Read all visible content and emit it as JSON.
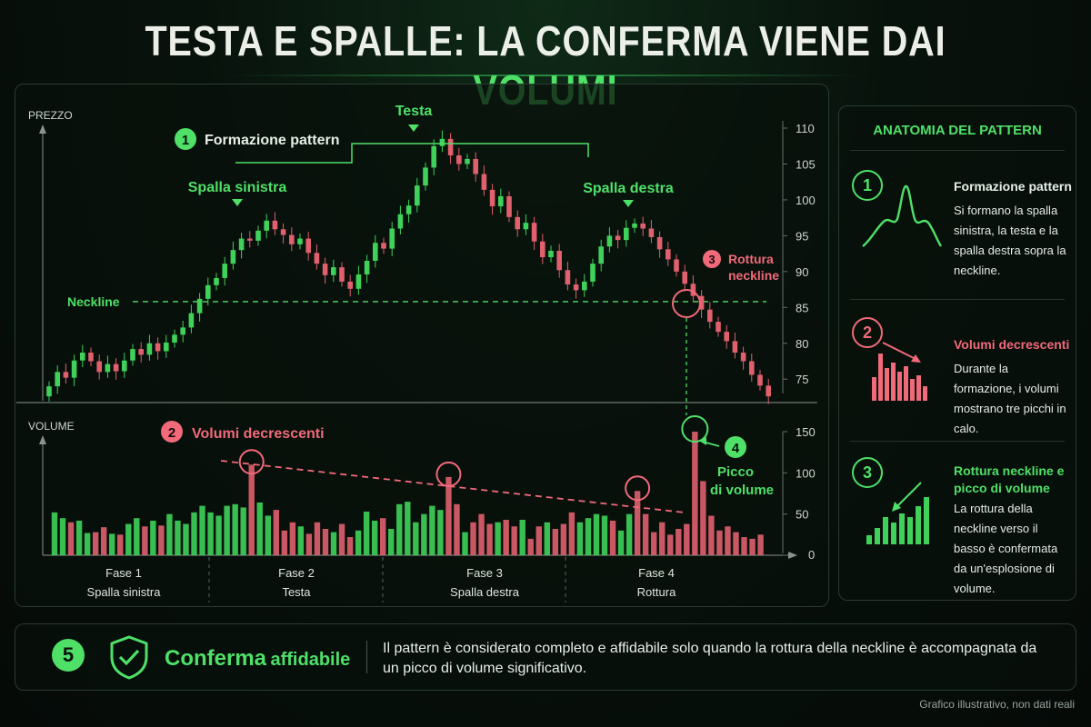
{
  "title": {
    "main": "TESTA E SPALLE: LA CONFERMA VIENE DAI",
    "accent": "VOLUMI"
  },
  "colors": {
    "bull": "#3fd15a",
    "bear": "#e0606e",
    "accent": "#4fe068",
    "bg": "#07100a"
  },
  "chart_data": {
    "type": "candlestick",
    "price_axis": {
      "label": "PREZZO",
      "ticks": [
        110,
        105,
        100,
        95,
        90,
        85,
        80,
        75
      ],
      "range": [
        71,
        112
      ]
    },
    "volume_axis": {
      "label": "VOLUME",
      "ticks": [
        150,
        100,
        50,
        0
      ],
      "range": [
        0,
        160
      ]
    },
    "neckline": {
      "label": "Neckline",
      "value": 85.8
    },
    "annotations": {
      "formation": "Formazione pattern",
      "left_shoulder": "Spalla sinistra",
      "head": "Testa",
      "right_shoulder": "Spalla destra",
      "breakout": [
        "Rottura",
        "neckline"
      ],
      "vol_decreasing": "Volumi decrescenti",
      "vol_peak": [
        "Picco",
        "di volume"
      ],
      "badges": [
        "1",
        "2",
        "3",
        "4"
      ]
    },
    "phases": [
      {
        "name": "Fase 1",
        "label": "Spalla sinistra"
      },
      {
        "name": "Fase 2",
        "label": "Testa"
      },
      {
        "name": "Fase 3",
        "label": "Spalla destra"
      },
      {
        "name": "Fase 4",
        "label": "Rottura"
      }
    ],
    "candles": [
      [
        72.6,
        74.0
      ],
      [
        74.0,
        76.0
      ],
      [
        76.0,
        75.2
      ],
      [
        75.2,
        77.6
      ],
      [
        77.6,
        78.7
      ],
      [
        78.7,
        77.5
      ],
      [
        77.5,
        76.0
      ],
      [
        76.0,
        77.1
      ],
      [
        77.1,
        76.1
      ],
      [
        76.1,
        77.6
      ],
      [
        77.6,
        79.2
      ],
      [
        79.2,
        78.4
      ],
      [
        78.4,
        80.0
      ],
      [
        80.0,
        78.9
      ],
      [
        78.9,
        80.1
      ],
      [
        80.1,
        81.2
      ],
      [
        81.2,
        82.2
      ],
      [
        82.2,
        84.2
      ],
      [
        84.2,
        86.2
      ],
      [
        86.2,
        88.1
      ],
      [
        88.1,
        89.1
      ],
      [
        89.1,
        91.1
      ],
      [
        91.1,
        93.0
      ],
      [
        93.0,
        94.6
      ],
      [
        94.6,
        94.3
      ],
      [
        94.3,
        95.7
      ],
      [
        95.7,
        97.1
      ],
      [
        97.1,
        95.9
      ],
      [
        95.9,
        95.1
      ],
      [
        95.1,
        93.8
      ],
      [
        93.8,
        94.6
      ],
      [
        94.6,
        92.6
      ],
      [
        92.6,
        91.1
      ],
      [
        91.1,
        89.5
      ],
      [
        89.5,
        90.6
      ],
      [
        90.6,
        88.6
      ],
      [
        88.6,
        87.6
      ],
      [
        87.6,
        89.6
      ],
      [
        89.6,
        91.5
      ],
      [
        91.5,
        94.0
      ],
      [
        94.0,
        93.2
      ],
      [
        93.2,
        96.0
      ],
      [
        96.0,
        98.0
      ],
      [
        98.0,
        99.2
      ],
      [
        99.2,
        102.0
      ],
      [
        102.0,
        104.5
      ],
      [
        104.5,
        107.5
      ],
      [
        107.5,
        108.5
      ],
      [
        108.5,
        106.2
      ],
      [
        106.2,
        105.0
      ],
      [
        105.0,
        105.7
      ],
      [
        105.7,
        103.6
      ],
      [
        103.6,
        101.4
      ],
      [
        101.4,
        99.1
      ],
      [
        99.1,
        100.5
      ],
      [
        100.5,
        97.6
      ],
      [
        97.6,
        95.9
      ],
      [
        95.9,
        96.8
      ],
      [
        96.8,
        94.2
      ],
      [
        94.2,
        92.0
      ],
      [
        92.0,
        92.9
      ],
      [
        92.9,
        90.2
      ],
      [
        90.2,
        88.2
      ],
      [
        88.2,
        87.4
      ],
      [
        87.4,
        88.6
      ],
      [
        88.6,
        91.1
      ],
      [
        91.1,
        93.5
      ],
      [
        93.5,
        95.0
      ],
      [
        95.0,
        94.4
      ],
      [
        94.4,
        96.1
      ],
      [
        96.1,
        96.7
      ],
      [
        96.7,
        96.0
      ],
      [
        96.0,
        94.8
      ],
      [
        94.8,
        93.1
      ],
      [
        93.1,
        91.7
      ],
      [
        91.7,
        90.0
      ],
      [
        90.0,
        88.3
      ],
      [
        88.3,
        86.6
      ],
      [
        86.6,
        84.7
      ],
      [
        84.7,
        83.0
      ],
      [
        83.0,
        81.6
      ],
      [
        81.6,
        80.3
      ],
      [
        80.3,
        78.7
      ],
      [
        78.7,
        77.5
      ],
      [
        77.5,
        75.6
      ],
      [
        75.6,
        74.1
      ],
      [
        74.1,
        72.6
      ]
    ],
    "volumes": [
      52,
      45,
      40,
      42,
      27,
      28,
      34,
      26,
      25,
      38,
      45,
      35,
      42,
      36,
      50,
      42,
      38,
      52,
      60,
      52,
      48,
      60,
      62,
      58,
      110,
      64,
      48,
      55,
      30,
      40,
      35,
      26,
      40,
      32,
      28,
      38,
      22,
      30,
      53,
      42,
      45,
      32,
      62,
      65,
      40,
      50,
      60,
      55,
      95,
      62,
      28,
      40,
      50,
      38,
      40,
      43,
      35,
      43,
      20,
      35,
      40,
      32,
      38,
      52,
      40,
      45,
      50,
      48,
      42,
      30,
      50,
      78,
      50,
      28,
      40,
      25,
      32,
      38,
      150,
      90,
      48,
      30,
      35,
      28,
      22,
      20,
      25
    ]
  },
  "side": {
    "title": "ANATOMIA DEL PATTERN",
    "items": [
      {
        "num": "1",
        "title": "Formazione pattern",
        "text": "Si formano la spalla sinistra, la testa e la spalla destra sopra la neckline."
      },
      {
        "num": "2",
        "title": "Volumi decrescenti",
        "text": "Durante la formazione, i volumi mostrano tre picchi in calo."
      },
      {
        "num": "3",
        "title": "Rottura neckline e picco di volume",
        "text": "La rottura della neckline verso il basso è confermata da un'esplosione di volume."
      }
    ]
  },
  "bottom": {
    "num": "5",
    "title_big": "Conferma",
    "title_small": "affidabile",
    "text": "Il pattern è considerato completo e affidabile solo quando la rottura della neckline è accompagnata da un picco di volume significativo."
  },
  "footnote": "Grafico illustrativo, non dati reali"
}
